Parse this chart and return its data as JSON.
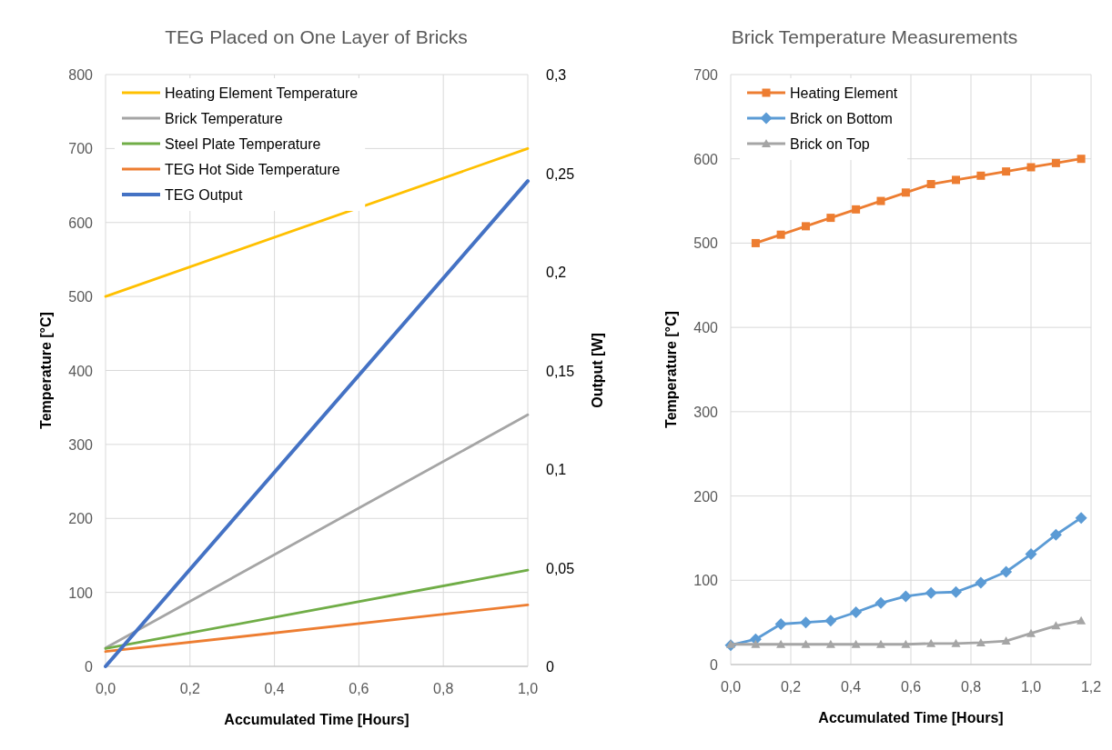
{
  "chart_data": [
    {
      "type": "line",
      "title": "TEG Placed on One Layer of Bricks",
      "xlabel": "Accumulated Time [Hours]",
      "ylabel": "Temperature [°C]",
      "y2label": "Output [W]",
      "x": [
        0,
        1
      ],
      "series": [
        {
          "name": "Heating Element Temperature",
          "color": "#ffc000",
          "values": [
            500,
            700
          ]
        },
        {
          "name": "Brick Temperature",
          "color": "#a5a5a5",
          "values": [
            25,
            340
          ]
        },
        {
          "name": "Steel Plate Temperature",
          "color": "#70ad47",
          "values": [
            24,
            130
          ]
        },
        {
          "name": "TEG Hot Side Temperature",
          "color": "#ed7d31",
          "values": [
            20,
            83
          ]
        },
        {
          "name": "TEG Output",
          "color": "#4472c4",
          "values": [
            0,
            0.246
          ],
          "axis": "y2"
        }
      ],
      "xlim": [
        0,
        1
      ],
      "xticks": [
        {
          "value": 0,
          "label": "0,0"
        },
        {
          "value": 0.2,
          "label": "0,2"
        },
        {
          "value": 0.4,
          "label": "0,4"
        },
        {
          "value": 0.6,
          "label": "0,6"
        },
        {
          "value": 0.8,
          "label": "0,8"
        },
        {
          "value": 1,
          "label": "1,0"
        }
      ],
      "ylim": [
        0,
        800
      ],
      "yticks": [
        0,
        100,
        200,
        300,
        400,
        500,
        600,
        700,
        800
      ],
      "y2lim": [
        0,
        0.3
      ],
      "y2ticks": [
        0,
        {
          "value": 0.05,
          "label": "0,05"
        },
        {
          "value": 0.1,
          "label": "0,1"
        },
        {
          "value": 0.15,
          "label": "0,15"
        },
        {
          "value": 0.2,
          "label": "0,2"
        },
        {
          "value": 0.25,
          "label": "0,25"
        },
        {
          "value": 0.3,
          "label": "0,3"
        }
      ],
      "grid": true,
      "legend": "top left",
      "marker": "none"
    },
    {
      "type": "line",
      "title": "Brick Temperature Measurements",
      "xlabel": "Accumulated Time [Hours]",
      "ylabel": "Temperature [°C]",
      "x": [
        0,
        0.083,
        0.167,
        0.25,
        0.333,
        0.417,
        0.5,
        0.583,
        0.667,
        0.75,
        0.833,
        0.917,
        1,
        1.083,
        1.167
      ],
      "series": [
        {
          "name": "Heating Element",
          "color": "#ed7d31",
          "marker": "square",
          "x": [
            0.083,
            0.167,
            0.25,
            0.333,
            0.417,
            0.5,
            0.583,
            0.667,
            0.75,
            0.833,
            0.917,
            1,
            1.083,
            1.167
          ],
          "values": [
            500,
            510,
            520,
            530,
            540,
            550,
            560,
            570,
            575,
            580,
            585,
            590,
            595,
            600
          ]
        },
        {
          "name": "Brick on Bottom",
          "color": "#5b9bd5",
          "marker": "diamond",
          "values": [
            23,
            30,
            48,
            50,
            52,
            62,
            73,
            81,
            85,
            86,
            97,
            110,
            131,
            154,
            174
          ]
        },
        {
          "name": "Brick on Top",
          "color": "#a5a5a5",
          "marker": "triangle",
          "values": [
            24,
            24,
            24,
            24,
            24,
            24,
            24,
            24,
            25,
            25,
            26,
            28,
            37,
            46,
            52
          ]
        }
      ],
      "xlim": [
        0,
        1.2
      ],
      "xticks": [
        {
          "value": 0,
          "label": "0,0"
        },
        {
          "value": 0.2,
          "label": "0,2"
        },
        {
          "value": 0.4,
          "label": "0,4"
        },
        {
          "value": 0.6,
          "label": "0,6"
        },
        {
          "value": 0.8,
          "label": "0,8"
        },
        {
          "value": 1,
          "label": "1,0"
        },
        {
          "value": 1.2,
          "label": "1,2"
        }
      ],
      "ylim": [
        0,
        700
      ],
      "yticks": [
        0,
        100,
        200,
        300,
        400,
        500,
        600,
        700
      ],
      "grid": true,
      "legend": "top left"
    }
  ]
}
